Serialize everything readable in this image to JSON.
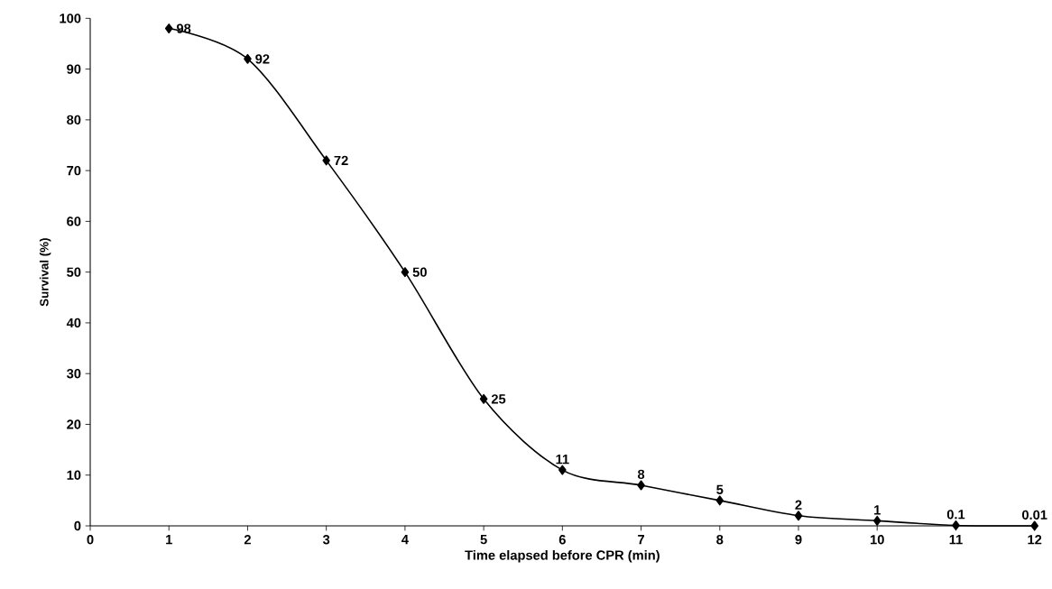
{
  "chart_data": {
    "type": "line",
    "xlabel": "Time elapsed before CPR (min)",
    "ylabel": "Survival (%)",
    "x": [
      1,
      2,
      3,
      4,
      5,
      6,
      7,
      8,
      9,
      10,
      11,
      12
    ],
    "values": [
      98,
      92,
      72,
      50,
      25,
      11,
      8,
      5,
      2,
      1,
      0.1,
      0.01
    ],
    "color": "#000000",
    "marker": "diamond",
    "line_style": "solid",
    "data_labels": true,
    "grid": false,
    "xlim": [
      0,
      12
    ],
    "ylim": [
      0,
      100
    ],
    "xticks": [
      0,
      1,
      2,
      3,
      4,
      5,
      6,
      7,
      8,
      9,
      10,
      11,
      12
    ],
    "yticks": [
      0,
      10,
      20,
      30,
      40,
      50,
      60,
      70,
      80,
      90,
      100
    ]
  }
}
